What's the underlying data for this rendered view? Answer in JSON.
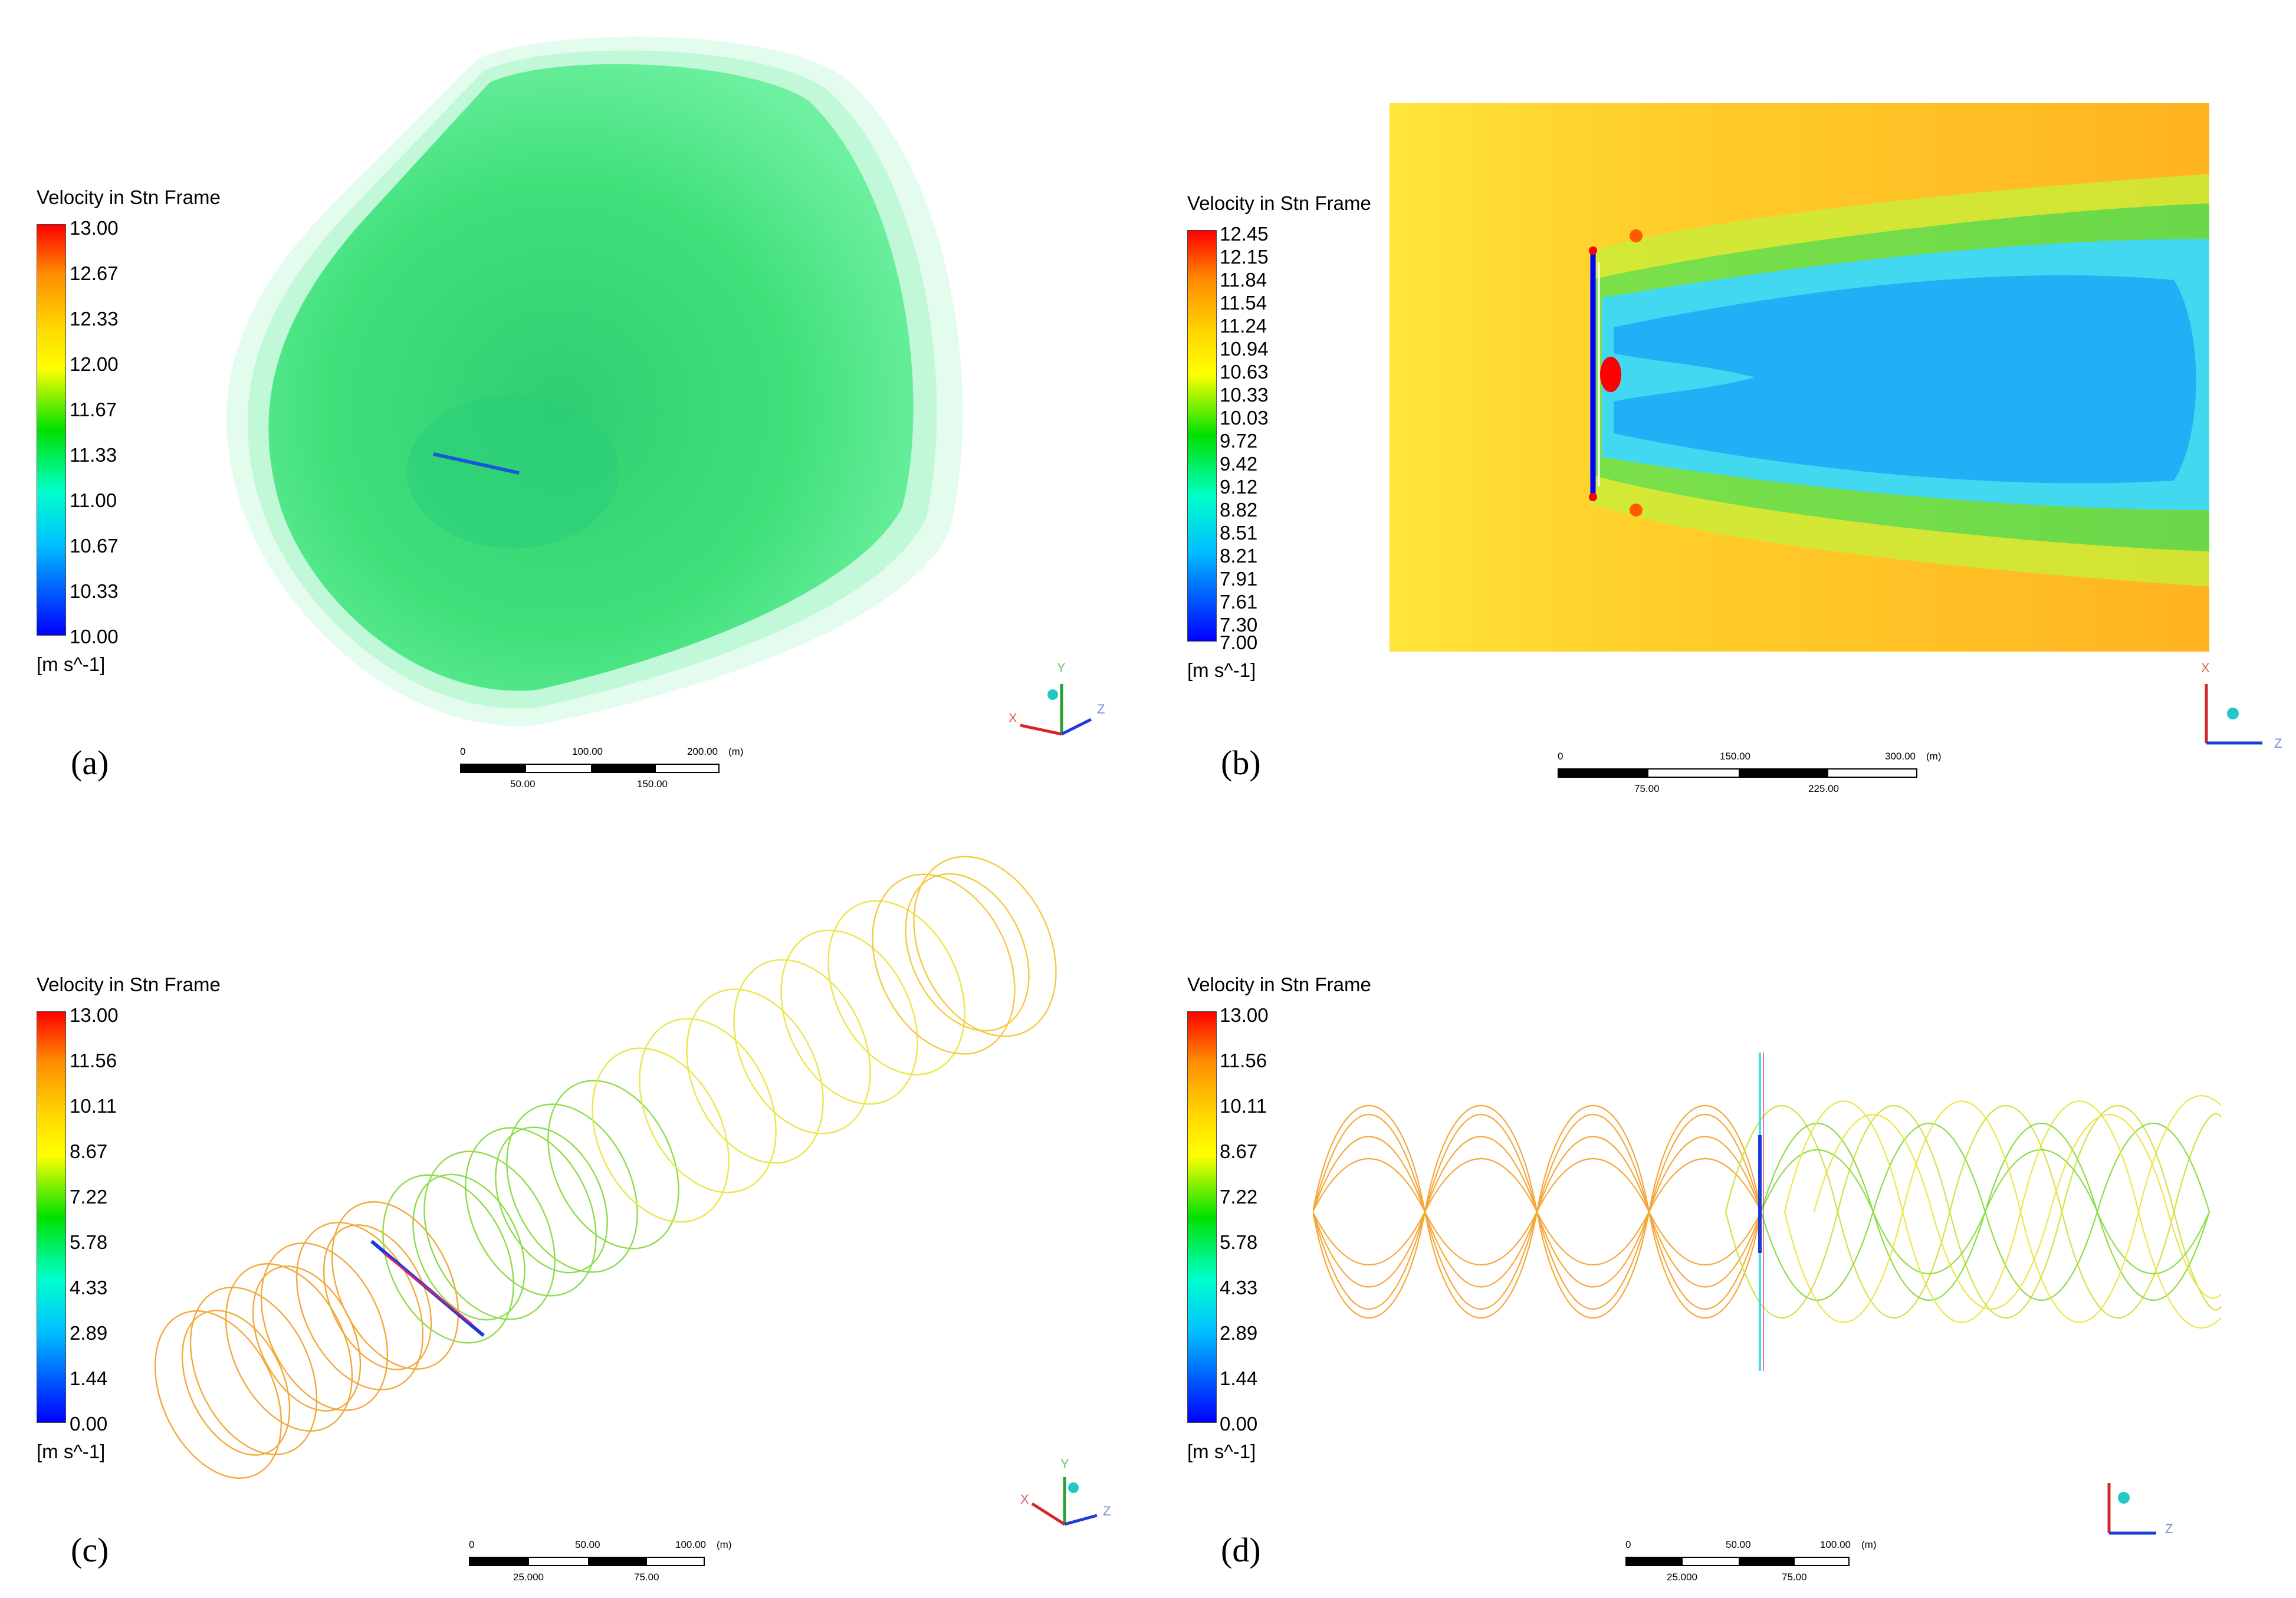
{
  "panels": [
    {
      "label": "(a)",
      "legend_title": "Velocity in Stn Frame",
      "unit": "[m s^-1]",
      "ticks": [
        "13.00",
        "12.67",
        "12.33",
        "12.00",
        "11.67",
        "11.33",
        "11.00",
        "10.67",
        "10.33",
        "10.00"
      ],
      "scale": {
        "top": [
          "0",
          "100.00",
          "200.00",
          "(m)"
        ],
        "bottom": [
          "50.00",
          "150.00"
        ]
      },
      "axes": {
        "a": "Y",
        "b": "X",
        "c": "Z"
      }
    },
    {
      "label": "(b)",
      "legend_title": "Velocity in Stn Frame",
      "unit": "[m s^-1]",
      "ticks": [
        "12.45",
        "12.15",
        "11.84",
        "11.54",
        "11.24",
        "10.94",
        "10.63",
        "10.33",
        "10.03",
        "9.72",
        "9.42",
        "9.12",
        "8.82",
        "8.51",
        "8.21",
        "7.91",
        "7.61",
        "7.30",
        "7.00"
      ],
      "scale": {
        "top": [
          "0",
          "150.00",
          "300.00",
          "(m)"
        ],
        "bottom": [
          "75.00",
          "225.00"
        ]
      },
      "axes": {
        "a": "X",
        "b": "",
        "c": "Z"
      }
    },
    {
      "label": "(c)",
      "legend_title": "Velocity in Stn Frame",
      "unit": "[m s^-1]",
      "ticks": [
        "13.00",
        "11.56",
        "10.11",
        "8.67",
        "7.22",
        "5.78",
        "4.33",
        "2.89",
        "1.44",
        "0.00"
      ],
      "scale": {
        "top": [
          "0",
          "50.00",
          "100.00",
          "(m)"
        ],
        "bottom": [
          "25.000",
          "75.00"
        ]
      },
      "axes": {
        "a": "Y",
        "b": "X",
        "c": "Z"
      }
    },
    {
      "label": "(d)",
      "legend_title": "Velocity in Stn Frame",
      "unit": "[m s^-1]",
      "ticks": [
        "13.00",
        "11.56",
        "10.11",
        "8.67",
        "7.22",
        "5.78",
        "4.33",
        "2.89",
        "1.44",
        "0.00"
      ],
      "scale": {
        "top": [
          "0",
          "50.00",
          "100.00",
          "(m)"
        ],
        "bottom": [
          "25.000",
          "75.00"
        ]
      },
      "axes": {
        "a": "",
        "b": "",
        "c": "Z"
      }
    }
  ],
  "colors": {
    "colormap": [
      "#ff0000",
      "#ff8c00",
      "#ffd700",
      "#ffff00",
      "#00e000",
      "#00ffcc",
      "#00bfff",
      "#0000ff"
    ],
    "wake_green": "#3fe07a",
    "contour_orange": "#ffa500",
    "contour_yellow": "#f5e33a",
    "contour_cyan": "#41d8f0",
    "streamline_orange": "#f29a1a",
    "streamline_green": "#7bd62a",
    "streamline_yellow": "#e8e22a"
  }
}
